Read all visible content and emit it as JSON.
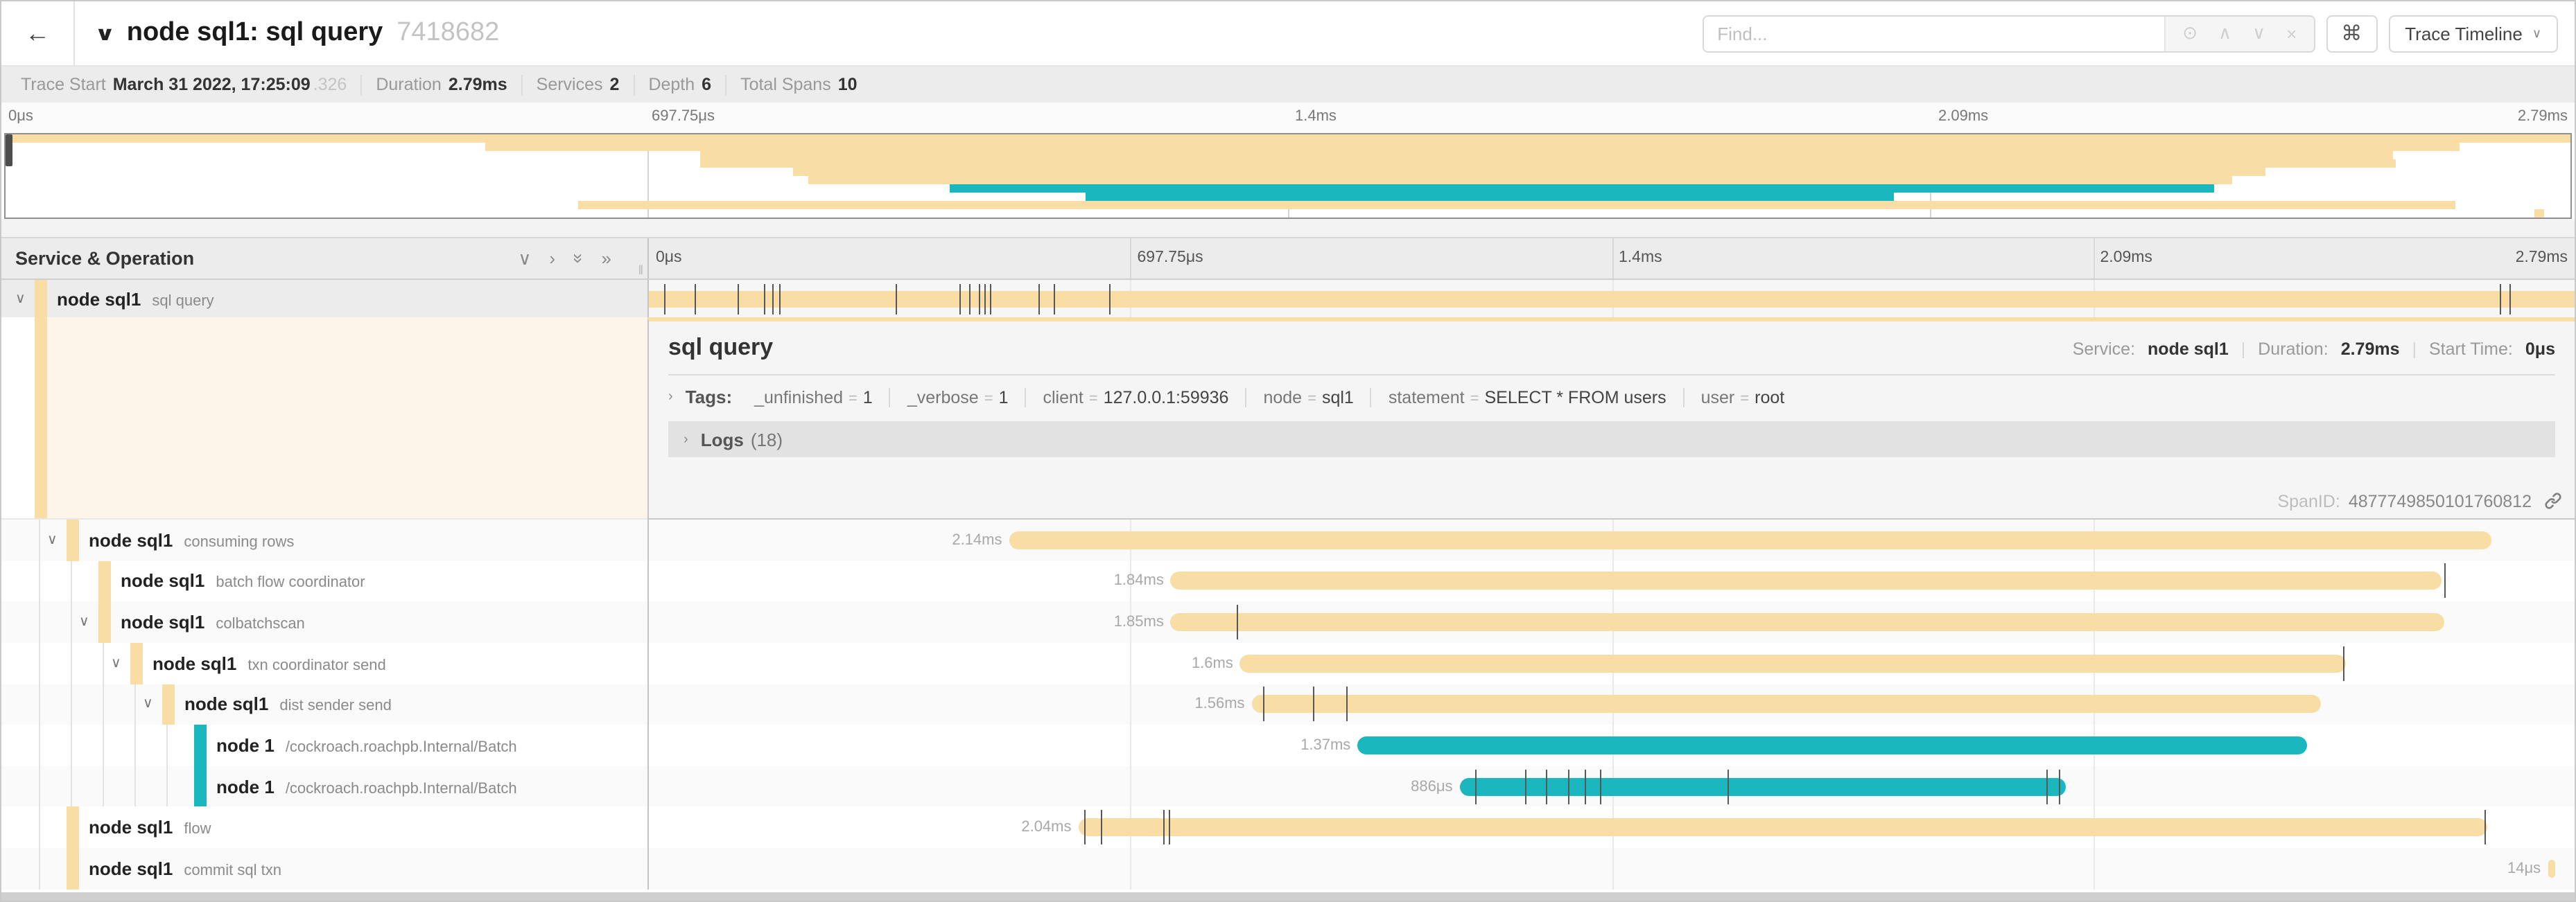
{
  "header": {
    "back_icon": "←",
    "collapse_icon": "∨",
    "title": "node sql1: sql query",
    "trace_id": "7418682",
    "find": {
      "placeholder": "Find...",
      "icons": [
        "⊙",
        "∧",
        "∨",
        "×"
      ]
    },
    "shortcut_icon": "⌘",
    "view_button": {
      "label": "Trace Timeline",
      "chevron": "∨"
    }
  },
  "trace_info": {
    "items": [
      {
        "label": "Trace Start",
        "value": "March 31 2022, 17:25:09",
        "suffix": ".326"
      },
      {
        "label": "Duration",
        "value": "2.79ms"
      },
      {
        "label": "Services",
        "value": "2"
      },
      {
        "label": "Depth",
        "value": "6"
      },
      {
        "label": "Total Spans",
        "value": "10"
      }
    ]
  },
  "timeline": {
    "ticks": [
      "0μs",
      "697.75μs",
      "1.4ms",
      "2.09ms",
      "2.79ms"
    ],
    "grid_pcts": [
      25,
      50,
      75
    ]
  },
  "colors": {
    "yellow": "#f8dda4",
    "teal": "#1ab8be"
  },
  "left_header": {
    "title": "Service & Operation",
    "icons": [
      "∨",
      "›",
      "»",
      "»"
    ],
    "grip": "‖"
  },
  "spans": [
    {
      "service": "node sql1",
      "operation": "sql query",
      "level": 0,
      "color": "yellow",
      "expander": "∨",
      "start": 0,
      "end": 100,
      "label": "",
      "ticks": [
        0.8,
        2.4,
        4.6,
        6.0,
        6.4,
        6.8,
        12.8,
        16.1,
        16.6,
        17.1,
        17.4,
        17.7,
        20.2,
        21.0,
        23.9,
        96.1,
        96.6
      ]
    },
    {
      "service": "node sql1",
      "operation": "consuming rows",
      "level": 1,
      "color": "yellow",
      "expander": "∨",
      "start": 18.7,
      "end": 95.7,
      "label": "2.14ms",
      "ticks": []
    },
    {
      "service": "node sql1",
      "operation": "batch flow coordinator",
      "level": 2,
      "color": "yellow",
      "expander": null,
      "start": 27.1,
      "end": 93.1,
      "label": "1.84ms",
      "ticks": [
        93.2
      ]
    },
    {
      "service": "node sql1",
      "operation": "colbatchscan",
      "level": 2,
      "color": "yellow",
      "expander": "∨",
      "start": 27.1,
      "end": 93.2,
      "label": "1.85ms",
      "ticks": [
        30.5
      ]
    },
    {
      "service": "node sql1",
      "operation": "txn coordinator send",
      "level": 3,
      "color": "yellow",
      "expander": "∨",
      "start": 30.7,
      "end": 88.1,
      "label": "1.6ms",
      "ticks": [
        88.0
      ]
    },
    {
      "service": "node sql1",
      "operation": "dist sender send",
      "level": 4,
      "color": "yellow",
      "expander": "∨",
      "start": 31.3,
      "end": 86.8,
      "label": "1.56ms",
      "ticks": [
        31.9,
        34.5,
        36.2
      ]
    },
    {
      "service": "node 1",
      "operation": "/cockroach.roachpb.Internal/Batch",
      "level": 5,
      "color": "teal",
      "expander": null,
      "start": 36.8,
      "end": 86.1,
      "label": "1.37ms",
      "ticks": []
    },
    {
      "service": "node 1",
      "operation": "/cockroach.roachpb.Internal/Batch",
      "level": 5,
      "color": "teal",
      "expander": null,
      "start": 42.1,
      "end": 73.6,
      "label": "886μs",
      "ticks": [
        42.9,
        45.5,
        46.6,
        47.7,
        48.6,
        49.4,
        56.0,
        72.6,
        73.2
      ]
    },
    {
      "service": "node sql1",
      "operation": "flow",
      "level": 1,
      "color": "yellow",
      "expander": null,
      "start": 22.3,
      "end": 95.5,
      "label": "2.04ms",
      "ticks": [
        22.6,
        23.5,
        26.7,
        27.0,
        95.3
      ]
    },
    {
      "service": "node sql1",
      "operation": "commit sql txn",
      "level": 1,
      "color": "yellow",
      "expander": null,
      "start": 98.6,
      "end": 99.0,
      "label": "14μs",
      "ticks": []
    }
  ],
  "detail": {
    "title": "sql query",
    "meta": [
      {
        "label": "Service:",
        "value": "node sql1"
      },
      {
        "label": "Duration:",
        "value": "2.79ms"
      },
      {
        "label": "Start Time:",
        "value": "0μs"
      }
    ],
    "chevron": "›",
    "tags_label": "Tags:",
    "tags": [
      {
        "key": "_unfinished",
        "value": "1"
      },
      {
        "key": "_verbose",
        "value": "1"
      },
      {
        "key": "client",
        "value": "127.0.0.1:59936"
      },
      {
        "key": "node",
        "value": "sql1"
      },
      {
        "key": "statement",
        "value": "SELECT * FROM users"
      },
      {
        "key": "user",
        "value": "root"
      }
    ],
    "logs_label": "Logs",
    "logs_count": "(18)",
    "span_id_label": "SpanID:",
    "span_id": "4877749850101760812"
  }
}
